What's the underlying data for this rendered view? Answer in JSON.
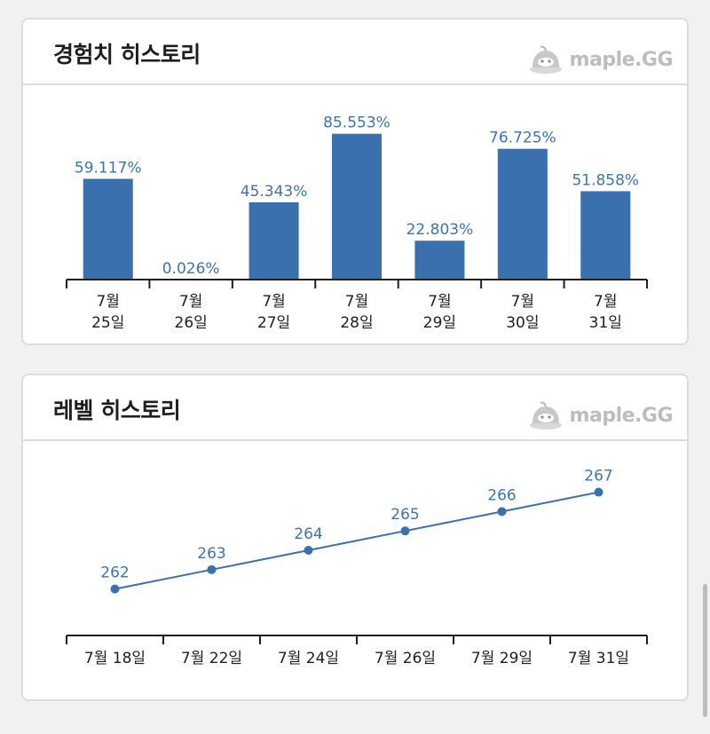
{
  "exp_card": {
    "title": "경험치 히스토리",
    "brand": "maple.GG"
  },
  "level_card": {
    "title": "레벨 히스토리",
    "brand": "maple.GG"
  },
  "colors": {
    "accent": "#3c74b0",
    "bar": "#3a70ad",
    "line": "#3a70ad"
  },
  "chart_data": [
    {
      "type": "bar",
      "categories": [
        [
          "7월",
          "25일"
        ],
        [
          "7월",
          "26일"
        ],
        [
          "7월",
          "27일"
        ],
        [
          "7월",
          "28일"
        ],
        [
          "7월",
          "29일"
        ],
        [
          "7월",
          "30일"
        ],
        [
          "7월",
          "31일"
        ]
      ],
      "values": [
        59.117,
        0.026,
        45.343,
        85.553,
        22.803,
        76.725,
        51.858
      ],
      "data_labels": [
        "59.117%",
        "0.026%",
        "45.343%",
        "85.553%",
        "22.803%",
        "76.725%",
        "51.858%"
      ],
      "ylim": [
        0,
        100
      ]
    },
    {
      "type": "line",
      "categories": [
        "7월 18일",
        "7월 22일",
        "7월 24일",
        "7월 26일",
        "7월 29일",
        "7월 31일"
      ],
      "values": [
        262,
        263,
        264,
        265,
        266,
        267
      ],
      "data_labels": [
        "262",
        "263",
        "264",
        "265",
        "266",
        "267"
      ],
      "ylim": [
        259.6,
        268.4
      ]
    }
  ]
}
